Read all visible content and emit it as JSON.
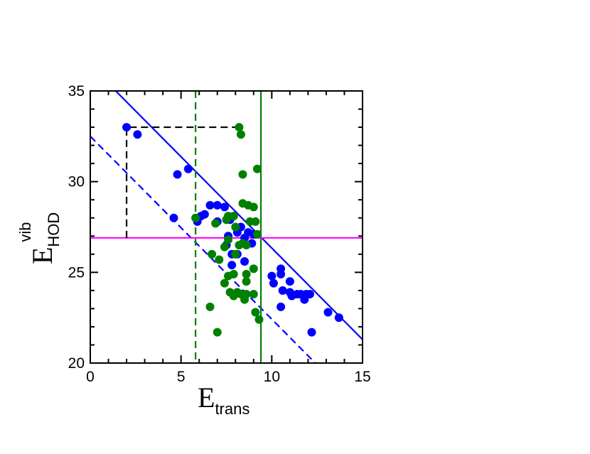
{
  "chart_data": {
    "type": "scatter",
    "xlabel": {
      "main": "E",
      "sub": "trans"
    },
    "ylabel": {
      "main": "E",
      "sub": "HOD",
      "sup": "vib"
    },
    "xlim": [
      0,
      15
    ],
    "ylim": [
      20,
      35
    ],
    "xticks": [
      0,
      5,
      10,
      15
    ],
    "yticks": [
      20,
      25,
      30,
      35
    ],
    "grid": false,
    "colors": {
      "blue": "#0000ff",
      "green": "#008000",
      "magenta": "#ff00ff",
      "black": "#000000"
    },
    "series": [
      {
        "color": "#0000ff",
        "points": [
          [
            2.0,
            33.0
          ],
          [
            2.6,
            32.6
          ],
          [
            4.8,
            30.4
          ],
          [
            5.4,
            30.7
          ],
          [
            4.6,
            28.0
          ],
          [
            5.9,
            27.8
          ],
          [
            6.1,
            28.1
          ],
          [
            6.3,
            28.2
          ],
          [
            6.6,
            28.7
          ],
          [
            7.0,
            28.7
          ],
          [
            7.4,
            28.6
          ],
          [
            7.0,
            27.8
          ],
          [
            7.7,
            27.9
          ],
          [
            7.6,
            27.0
          ],
          [
            7.5,
            26.5
          ],
          [
            7.8,
            26.0
          ],
          [
            8.1,
            27.2
          ],
          [
            8.3,
            27.5
          ],
          [
            8.5,
            26.9
          ],
          [
            8.7,
            27.2
          ],
          [
            9.0,
            27.1
          ],
          [
            8.1,
            26.0
          ],
          [
            8.5,
            25.6
          ],
          [
            8.9,
            26.6
          ],
          [
            7.8,
            25.4
          ],
          [
            10.0,
            24.8
          ],
          [
            10.1,
            24.4
          ],
          [
            10.5,
            25.2
          ],
          [
            10.5,
            24.9
          ],
          [
            10.6,
            24.0
          ],
          [
            11.0,
            24.5
          ],
          [
            11.0,
            23.9
          ],
          [
            11.1,
            23.7
          ],
          [
            11.4,
            23.8
          ],
          [
            11.6,
            23.8
          ],
          [
            11.9,
            23.8
          ],
          [
            11.8,
            23.5
          ],
          [
            12.1,
            23.8
          ],
          [
            10.5,
            23.1
          ],
          [
            13.1,
            22.8
          ],
          [
            13.7,
            22.5
          ],
          [
            12.2,
            21.7
          ]
        ]
      },
      {
        "color": "#008000",
        "points": [
          [
            8.2,
            33.0
          ],
          [
            8.3,
            32.6
          ],
          [
            9.2,
            30.7
          ],
          [
            8.4,
            30.4
          ],
          [
            5.8,
            28.0
          ],
          [
            7.6,
            28.1
          ],
          [
            7.9,
            28.1
          ],
          [
            8.4,
            28.8
          ],
          [
            8.7,
            28.7
          ],
          [
            9.0,
            28.6
          ],
          [
            7.5,
            27.9
          ],
          [
            8.8,
            27.8
          ],
          [
            9.1,
            27.8
          ],
          [
            6.9,
            27.7
          ],
          [
            8.0,
            27.5
          ],
          [
            9.2,
            27.1
          ],
          [
            7.6,
            26.8
          ],
          [
            7.4,
            26.4
          ],
          [
            8.2,
            26.5
          ],
          [
            8.4,
            26.6
          ],
          [
            8.6,
            26.5
          ],
          [
            8.0,
            26.0
          ],
          [
            6.7,
            26.0
          ],
          [
            7.1,
            25.7
          ],
          [
            9.0,
            25.2
          ],
          [
            7.9,
            24.9
          ],
          [
            8.6,
            24.9
          ],
          [
            8.6,
            24.5
          ],
          [
            7.6,
            24.8
          ],
          [
            7.4,
            24.4
          ],
          [
            7.7,
            23.9
          ],
          [
            8.1,
            23.9
          ],
          [
            8.3,
            23.8
          ],
          [
            8.6,
            23.8
          ],
          [
            9.0,
            23.8
          ],
          [
            7.9,
            23.7
          ],
          [
            8.5,
            23.5
          ],
          [
            6.6,
            23.1
          ],
          [
            9.1,
            22.8
          ],
          [
            9.3,
            22.4
          ],
          [
            7.0,
            21.7
          ]
        ]
      }
    ],
    "lines": [
      {
        "kind": "segment",
        "color": "#0000ff",
        "dash": "solid",
        "from": [
          1.4,
          35.0
        ],
        "to": [
          15.0,
          21.3
        ]
      },
      {
        "kind": "segment",
        "color": "#0000ff",
        "dash": "dashed",
        "from": [
          0.0,
          32.5
        ],
        "to": [
          12.4,
          20.0
        ]
      },
      {
        "kind": "vline",
        "color": "#008000",
        "dash": "solid",
        "x": 9.4
      },
      {
        "kind": "vline",
        "color": "#008000",
        "dash": "dashed",
        "x": 5.8
      },
      {
        "kind": "hline",
        "color": "#ff00ff",
        "dash": "solid",
        "y": 26.9
      },
      {
        "kind": "polyline",
        "color": "#000000",
        "dash": "dashed",
        "points": [
          [
            2.0,
            26.9
          ],
          [
            2.0,
            33.0
          ],
          [
            8.2,
            33.0
          ]
        ]
      }
    ]
  }
}
